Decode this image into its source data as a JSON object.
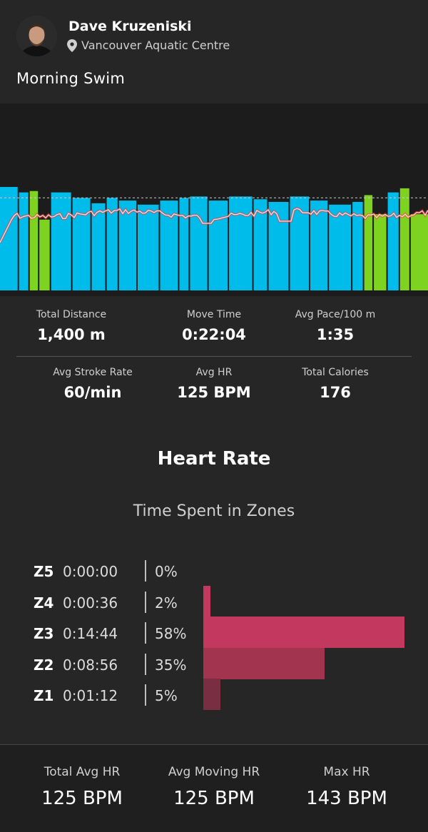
{
  "header": {
    "user_name": "Dave Kruzeniski",
    "location": "Vancouver Aquatic Centre",
    "activity_title": "Morning Swim",
    "icons": {
      "avatar": "avatar-photo",
      "location": "location-pin-icon"
    }
  },
  "chart_data": {
    "type": "bar",
    "description_series": [
      "intervals",
      "heart-rate-line"
    ],
    "intervals": [
      {
        "kind": "swim",
        "rel_height": 0.76
      },
      {
        "kind": "swim",
        "rel_height": 0.72
      },
      {
        "kind": "drill",
        "rel_height": 0.73
      },
      {
        "kind": "drill",
        "rel_height": 0.52
      },
      {
        "kind": "swim",
        "rel_height": 0.72
      },
      {
        "kind": "swim",
        "rel_height": 0.68
      },
      {
        "kind": "swim",
        "rel_height": 0.64
      },
      {
        "kind": "swim",
        "rel_height": 0.68
      },
      {
        "kind": "swim",
        "rel_height": 0.66
      },
      {
        "kind": "swim",
        "rel_height": 0.63
      },
      {
        "kind": "swim",
        "rel_height": 0.66
      },
      {
        "kind": "swim",
        "rel_height": 0.68
      },
      {
        "kind": "swim",
        "rel_height": 0.69
      },
      {
        "kind": "swim",
        "rel_height": 0.66
      },
      {
        "kind": "swim",
        "rel_height": 0.69
      },
      {
        "kind": "swim",
        "rel_height": 0.67
      },
      {
        "kind": "swim",
        "rel_height": 0.65
      },
      {
        "kind": "swim",
        "rel_height": 0.69
      },
      {
        "kind": "swim",
        "rel_height": 0.66
      },
      {
        "kind": "swim",
        "rel_height": 0.63
      },
      {
        "kind": "swim",
        "rel_height": 0.65
      },
      {
        "kind": "drill",
        "rel_height": 0.7
      },
      {
        "kind": "drill",
        "rel_height": 0.56
      },
      {
        "kind": "swim",
        "rel_height": 0.72
      },
      {
        "kind": "drill",
        "rel_height": 0.75
      },
      {
        "kind": "drill",
        "rel_height": 0.56
      }
    ],
    "reference_line_rel": 0.68,
    "colors": {
      "swim": "#00bcea",
      "drill": "#7ed321",
      "hr_line": "#ff3a3a",
      "hr_core": "#ffd9d9",
      "reference": "#cccccc"
    }
  },
  "stats": {
    "total_distance": {
      "label": "Total Distance",
      "value": "1,400 m"
    },
    "move_time": {
      "label": "Move Time",
      "value": "0:22:04"
    },
    "avg_pace": {
      "label": "Avg Pace/100 m",
      "value": "1:35"
    },
    "avg_stroke_rate": {
      "label": "Avg Stroke Rate",
      "value": "60/min"
    },
    "avg_hr": {
      "label": "Avg HR",
      "value": "125 BPM"
    },
    "total_calories": {
      "label": "Total Calories",
      "value": "176"
    }
  },
  "heart_rate": {
    "title": "Heart Rate",
    "subtitle": "Time Spent in Zones",
    "zones": [
      {
        "name": "Z5",
        "time": "0:00:00",
        "pct": "0%",
        "fraction": 0.0,
        "color": "#c2385f"
      },
      {
        "name": "Z4",
        "time": "0:00:36",
        "pct": "2%",
        "fraction": 0.02,
        "color": "#c2385f"
      },
      {
        "name": "Z3",
        "time": "0:14:44",
        "pct": "58%",
        "fraction": 0.58,
        "color": "#c2385f"
      },
      {
        "name": "Z2",
        "time": "0:08:56",
        "pct": "35%",
        "fraction": 0.35,
        "color": "#a3344f"
      },
      {
        "name": "Z1",
        "time": "0:01:12",
        "pct": "5%",
        "fraction": 0.05,
        "color": "#7a2e42"
      }
    ]
  },
  "footer": {
    "total_avg_hr": {
      "label": "Total Avg HR",
      "value": "125 BPM"
    },
    "avg_moving_hr": {
      "label": "Avg Moving HR",
      "value": "125 BPM"
    },
    "max_hr": {
      "label": "Max HR",
      "value": "143 BPM"
    }
  }
}
